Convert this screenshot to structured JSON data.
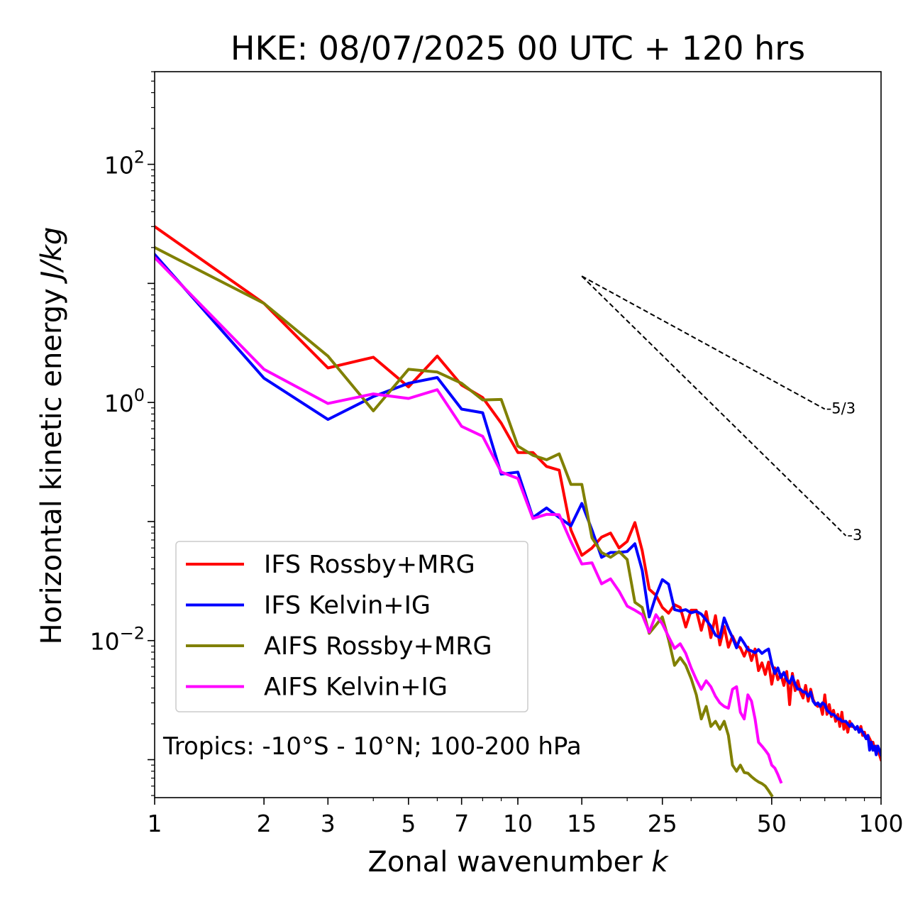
{
  "chart_data": {
    "type": "line",
    "title": "HKE: 08/07/2025 00 UTC + 120 hrs",
    "xlabel": "Zonal wavenumber",
    "xlabel_var": "k",
    "ylabel": "Horizontal kinetic energy",
    "ylabel_unit": "J/kg",
    "xscale": "log",
    "yscale": "log",
    "xlim": [
      1,
      100
    ],
    "ylim": [
      0.00048,
      600
    ],
    "x_ticks": [
      1,
      2,
      3,
      5,
      7,
      10,
      15,
      25,
      50,
      100
    ],
    "x_tick_labels": [
      "1",
      "2",
      "3",
      "5",
      "7",
      "10",
      "15",
      "25",
      "50",
      "100"
    ],
    "y_ticks": [
      {
        "value": 100,
        "base": "10",
        "exp": "2"
      },
      {
        "value": 1,
        "base": "10",
        "exp": "0"
      },
      {
        "value": 0.01,
        "base": "10",
        "exp": "−2"
      }
    ],
    "grid": false,
    "legend_position": "lower-left",
    "annotation": "Tropics: -10°S - 10°N; 100-200 hPa",
    "reference_slopes": [
      {
        "label": "-5/3",
        "slope": -1.6667,
        "x": [
          15,
          70
        ],
        "y": [
          11.5,
          0.88
        ]
      },
      {
        "label": "-3",
        "slope": -3,
        "x": [
          15,
          80
        ],
        "y": [
          11.5,
          0.076
        ]
      }
    ],
    "series": [
      {
        "name": "IFS Rossby+MRG",
        "color": "#ff0000",
        "x": [
          1,
          2,
          3,
          4,
          5,
          6,
          7,
          8,
          9,
          10,
          11,
          12,
          13,
          14,
          15,
          16,
          17,
          18,
          19,
          20,
          21,
          22,
          23,
          24,
          25,
          26,
          27,
          28,
          29,
          30,
          31,
          32,
          33,
          34,
          35,
          36,
          37,
          38,
          39,
          40,
          41,
          42,
          43,
          44,
          45,
          46,
          47,
          48,
          49,
          50,
          51,
          52,
          53,
          54,
          55,
          56,
          57,
          58,
          59,
          60,
          61,
          62,
          63,
          64,
          65,
          66,
          67,
          68,
          69,
          70,
          71,
          72,
          73,
          74,
          75,
          76,
          77,
          78,
          79,
          80,
          81,
          82,
          83,
          84,
          85,
          86,
          87,
          88,
          89,
          90,
          91,
          92,
          93,
          94,
          95,
          96,
          97,
          98,
          99,
          100
        ],
        "y": [
          30,
          6.8,
          1.95,
          2.4,
          1.35,
          2.45,
          1.4,
          1.1,
          0.67,
          0.38,
          0.38,
          0.29,
          0.27,
          0.085,
          0.052,
          0.06,
          0.074,
          0.08,
          0.06,
          0.068,
          0.098,
          0.057,
          0.027,
          0.024,
          0.019,
          0.017,
          0.02,
          0.019,
          0.013,
          0.018,
          0.018,
          0.0122,
          0.0175,
          0.0106,
          0.0162,
          0.0092,
          0.0131,
          0.0088,
          0.0109,
          0.0092,
          0.0087,
          0.0074,
          0.0088,
          0.0068,
          0.0085,
          0.0056,
          0.0065,
          0.0052,
          0.0066,
          0.0043,
          0.0059,
          0.0047,
          0.0052,
          0.0042,
          0.0055,
          0.0029,
          0.0053,
          0.0038,
          0.0046,
          0.0037,
          0.0033,
          0.0042,
          0.0031,
          0.0039,
          0.0032,
          0.0029,
          0.0028,
          0.0029,
          0.0024,
          0.0035,
          0.0024,
          0.0029,
          0.0023,
          0.0026,
          0.0021,
          0.0024,
          0.0019,
          0.0025,
          0.0018,
          0.0021,
          0.0017,
          0.0021,
          0.0019,
          0.0019,
          0.0018,
          0.0019,
          0.0017,
          0.0019,
          0.0016,
          0.0017,
          0.0015,
          0.0016,
          0.0015,
          0.0014,
          0.0014,
          0.0012,
          0.0013,
          0.0012,
          0.0011,
          0.001
        ]
      },
      {
        "name": "IFS Kelvin+IG",
        "color": "#0000ff",
        "x": [
          1,
          2,
          3,
          4,
          5,
          6,
          7,
          8,
          9,
          10,
          11,
          12,
          13,
          14,
          15,
          16,
          17,
          18,
          19,
          20,
          21,
          22,
          23,
          24,
          25,
          26,
          27,
          28,
          29,
          30,
          31,
          32,
          33,
          34,
          35,
          36,
          37,
          38,
          39,
          40,
          41,
          42,
          43,
          44,
          45,
          46,
          47,
          48,
          49,
          50,
          51,
          52,
          53,
          54,
          55,
          56,
          57,
          58,
          59,
          60,
          61,
          62,
          63,
          64,
          65,
          66,
          67,
          68,
          69,
          70,
          71,
          72,
          73,
          74,
          75,
          76,
          77,
          78,
          79,
          80,
          81,
          82,
          83,
          84,
          85,
          86,
          87,
          88,
          89,
          90,
          91,
          92,
          93,
          94,
          95,
          96,
          97,
          98,
          99,
          100
        ],
        "y": [
          17.5,
          1.6,
          0.72,
          1.12,
          1.45,
          1.62,
          0.88,
          0.82,
          0.25,
          0.26,
          0.108,
          0.13,
          0.108,
          0.092,
          0.142,
          0.085,
          0.05,
          0.055,
          0.055,
          0.056,
          0.065,
          0.039,
          0.0158,
          0.0238,
          0.0325,
          0.0298,
          0.0182,
          0.0177,
          0.0182,
          0.0171,
          0.0176,
          0.0167,
          0.0149,
          0.0132,
          0.0111,
          0.0106,
          0.0155,
          0.0126,
          0.0106,
          0.0087,
          0.0106,
          0.0095,
          0.0084,
          0.0082,
          0.0079,
          0.0084,
          0.0078,
          0.0082,
          0.0085,
          0.0064,
          0.0053,
          0.0059,
          0.0049,
          0.0054,
          0.0047,
          0.0044,
          0.005,
          0.0043,
          0.0039,
          0.0039,
          0.0037,
          0.0037,
          0.0034,
          0.0037,
          0.0031,
          0.0029,
          0.003,
          0.0028,
          0.003,
          0.0029,
          0.0026,
          0.0025,
          0.0024,
          0.0024,
          0.0023,
          0.0022,
          0.0022,
          0.0021,
          0.0021,
          0.0021,
          0.002,
          0.0019,
          0.002,
          0.0019,
          0.0018,
          0.0019,
          0.0017,
          0.0018,
          0.0017,
          0.0016,
          0.0015,
          0.0016,
          0.0012,
          0.0014,
          0.0012,
          0.0013,
          0.0011,
          0.0013,
          0.0012,
          0.0011
        ]
      },
      {
        "name": "AIFS Rossby+MRG",
        "color": "#808000",
        "x": [
          1,
          2,
          3,
          4,
          5,
          6,
          7,
          8,
          9,
          10,
          11,
          12,
          13,
          14,
          15,
          16,
          17,
          18,
          19,
          20,
          21,
          22,
          23,
          24,
          25,
          26,
          27,
          28,
          29,
          30,
          31,
          32,
          33,
          34,
          35,
          36,
          37,
          38,
          39,
          40,
          41,
          42,
          43,
          44,
          45,
          46,
          47,
          48,
          49,
          50
        ],
        "y": [
          20,
          6.8,
          2.45,
          0.85,
          1.9,
          1.8,
          1.45,
          1.05,
          1.06,
          0.43,
          0.36,
          0.33,
          0.37,
          0.205,
          0.205,
          0.073,
          0.055,
          0.05,
          0.056,
          0.048,
          0.021,
          0.019,
          0.0115,
          0.0135,
          0.0158,
          0.0102,
          0.0062,
          0.0072,
          0.0062,
          0.0048,
          0.0035,
          0.0022,
          0.0028,
          0.0019,
          0.0021,
          0.0018,
          0.0021,
          0.0016,
          0.0009,
          0.0008,
          0.0009,
          0.00078,
          0.00077,
          0.00072,
          0.00068,
          0.00065,
          0.00063,
          0.0006,
          0.00055,
          0.0005
        ]
      },
      {
        "name": "AIFS Kelvin+IG",
        "color": "#ff00ff",
        "x": [
          1,
          2,
          3,
          4,
          5,
          6,
          7,
          8,
          9,
          10,
          11,
          12,
          13,
          14,
          15,
          16,
          17,
          18,
          19,
          20,
          21,
          22,
          23,
          24,
          25,
          26,
          27,
          28,
          29,
          30,
          31,
          32,
          33,
          34,
          35,
          36,
          37,
          38,
          39,
          40,
          41,
          42,
          43,
          44,
          45,
          46,
          47,
          48,
          49,
          50,
          51,
          52,
          53
        ],
        "y": [
          16.5,
          1.9,
          0.98,
          1.18,
          1.08,
          1.28,
          0.63,
          0.52,
          0.26,
          0.23,
          0.106,
          0.115,
          0.114,
          0.068,
          0.044,
          0.045,
          0.03,
          0.033,
          0.026,
          0.0195,
          0.018,
          0.0165,
          0.0118,
          0.0165,
          0.0138,
          0.0108,
          0.0086,
          0.0094,
          0.0078,
          0.0059,
          0.0047,
          0.0039,
          0.0046,
          0.0041,
          0.0034,
          0.003,
          0.0028,
          0.0027,
          0.0039,
          0.0041,
          0.0025,
          0.0022,
          0.0035,
          0.0031,
          0.0022,
          0.0014,
          0.0013,
          0.0012,
          0.0011,
          0.0009,
          0.00085,
          0.00075,
          0.00065
        ]
      }
    ]
  }
}
